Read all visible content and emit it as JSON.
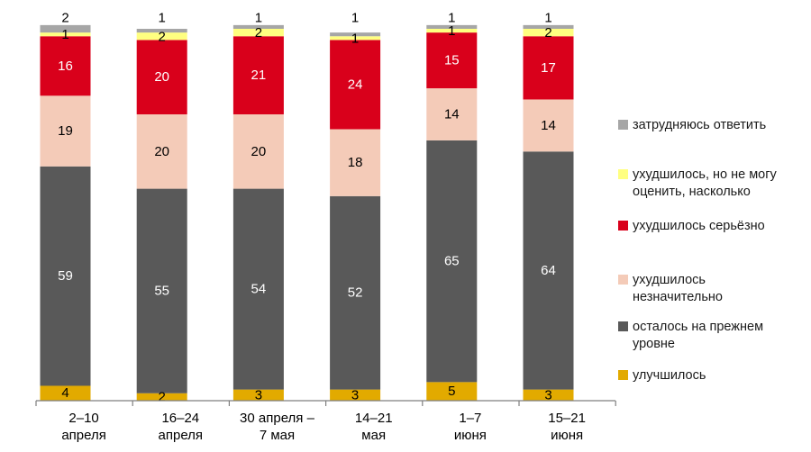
{
  "chart_data": {
    "type": "bar",
    "stacked": true,
    "categories": [
      [
        "2–10",
        "апреля"
      ],
      [
        "16–24",
        "апреля"
      ],
      [
        "30 апреля –",
        "7 мая"
      ],
      [
        "14–21",
        "мая"
      ],
      [
        "1–7",
        "июня"
      ],
      [
        "15–21",
        "июня"
      ]
    ],
    "series": [
      {
        "name": "улучшилось",
        "color": "#e2aa00",
        "values": [
          4,
          2,
          3,
          3,
          5,
          3
        ]
      },
      {
        "name": "осталось на прежнем уровне",
        "color": "#595959",
        "values": [
          59,
          55,
          54,
          52,
          65,
          64
        ]
      },
      {
        "name": "ухудшилось незначительно",
        "color": "#f4cbb8",
        "values": [
          19,
          20,
          20,
          18,
          14,
          14
        ]
      },
      {
        "name": "ухудшилось серьёзно",
        "color": "#d9001b",
        "values": [
          16,
          20,
          21,
          24,
          15,
          17
        ]
      },
      {
        "name": "ухудшилось, но не могу оценить, насколько",
        "color": "#ffff80",
        "values": [
          1,
          2,
          2,
          1,
          1,
          2
        ]
      },
      {
        "name": "затрудняюсь ответить",
        "color": "#a6a6a6",
        "values": [
          2,
          1,
          1,
          1,
          1,
          1
        ]
      }
    ],
    "legend": {
      "placement": "right",
      "order": [
        {
          "lines": [
            "затрудняюсь ответить"
          ],
          "color": "#a6a6a6"
        },
        {
          "lines": [
            "ухудшилось, но не могу",
            "оценить, насколько"
          ],
          "color": "#ffff80"
        },
        {
          "lines": [
            "ухудшилось серьёзно"
          ],
          "color": "#d9001b"
        },
        {
          "lines": [
            "ухудшилось",
            "незначительно"
          ],
          "color": "#f4cbb8"
        },
        {
          "lines": [
            "осталось на прежнем",
            "уровне"
          ],
          "color": "#595959"
        },
        {
          "lines": [
            "улучшилось"
          ],
          "color": "#e2aa00"
        }
      ]
    },
    "ylim": [
      0,
      100
    ],
    "grid": false,
    "title": "",
    "xlabel": "",
    "ylabel": ""
  }
}
